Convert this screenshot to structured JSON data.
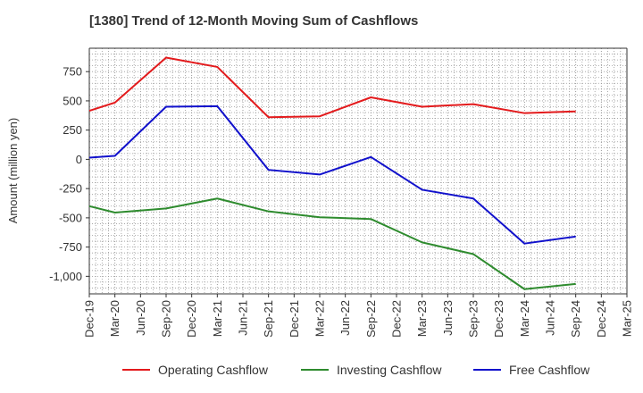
{
  "chart_data": {
    "type": "line",
    "title": "[1380]  Trend of 12-Month Moving Sum of Cashflows",
    "xlabel": "",
    "ylabel": "Amount (million yen)",
    "categories": [
      "Dec-19",
      "Mar-20",
      "Jun-20",
      "Sep-20",
      "Dec-20",
      "Mar-21",
      "Jun-21",
      "Sep-21",
      "Dec-21",
      "Mar-22",
      "Jun-22",
      "Sep-22",
      "Dec-22",
      "Mar-23",
      "Jun-23",
      "Sep-23",
      "Dec-23",
      "Mar-24",
      "Jun-24",
      "Sep-24",
      "Dec-24",
      "Mar-25"
    ],
    "ylim": [
      -1150,
      950
    ],
    "yticks": [
      750,
      500,
      250,
      0,
      -250,
      -500,
      -750,
      -1000
    ],
    "ytick_labels": [
      "750",
      "500",
      "250",
      "0",
      "-250",
      "-500",
      "-750",
      "-1,000"
    ],
    "grid": true,
    "legend_position": "bottom",
    "series": [
      {
        "name": "Operating Cashflow",
        "color": "#e31a1c",
        "values": [
          415,
          485,
          null,
          870,
          null,
          790,
          null,
          360,
          null,
          368,
          null,
          530,
          null,
          450,
          null,
          472,
          null,
          395,
          null,
          410,
          null,
          null
        ]
      },
      {
        "name": "Investing Cashflow",
        "color": "#2e8b2e",
        "values": [
          -400,
          -455,
          null,
          -420,
          null,
          -335,
          null,
          -445,
          null,
          -495,
          null,
          -510,
          null,
          -710,
          null,
          -810,
          null,
          -1110,
          null,
          -1065,
          null,
          null
        ]
      },
      {
        "name": "Free Cashflow",
        "color": "#1111cc",
        "values": [
          15,
          30,
          null,
          450,
          null,
          455,
          null,
          -90,
          null,
          -130,
          null,
          20,
          null,
          -260,
          null,
          -335,
          null,
          -720,
          null,
          -660,
          null,
          null
        ]
      }
    ]
  }
}
